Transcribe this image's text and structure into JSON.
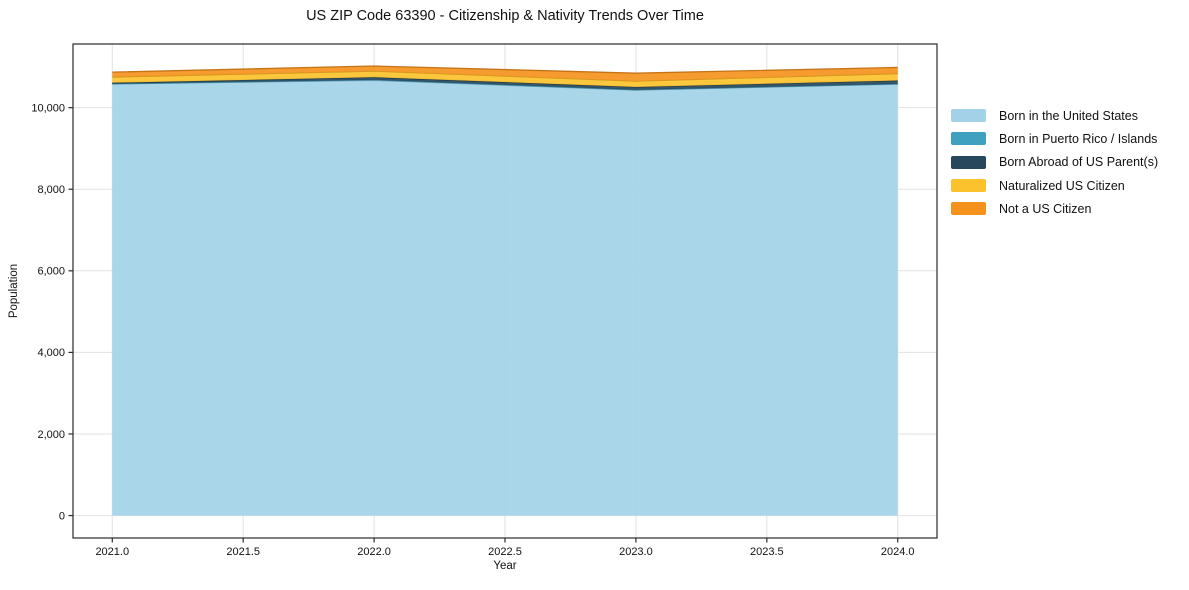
{
  "figure": {
    "background": "#ffffff",
    "text_color": "#111111",
    "spine_color": "#2a2a2a",
    "grid_color": "#e2e2e2"
  },
  "chart_data": {
    "type": "area",
    "stacked": true,
    "title": "US ZIP Code 63390 - Citizenship & Nativity Trends Over Time",
    "xlabel": "Year",
    "ylabel": "Population",
    "x": [
      2021,
      2022,
      2023,
      2024
    ],
    "series": [
      {
        "name": "Born in the United States",
        "color": "#A3D2E8",
        "values": [
          10580,
          10670,
          10430,
          10575
        ]
      },
      {
        "name": "Born in Puerto Rico / Islands",
        "color": "#3FA0C0",
        "values": [
          5,
          15,
          10,
          10
        ]
      },
      {
        "name": "Born Abroad of US Parent(s)",
        "color": "#27485C",
        "values": [
          25,
          60,
          65,
          80
        ]
      },
      {
        "name": "Naturalized US Citizen",
        "color": "#FCC22D",
        "values": [
          140,
          150,
          145,
          170
        ]
      },
      {
        "name": "Not a US Citizen",
        "color": "#F5921E",
        "values": [
          120,
          125,
          195,
          150
        ]
      }
    ],
    "totals": [
      10870,
      11020,
      10845,
      10985
    ],
    "xlim": [
      2020.85,
      2024.15
    ],
    "ylim": [
      -550,
      11560
    ],
    "xticks": {
      "values": [
        2021,
        2021.5,
        2022,
        2022.5,
        2023,
        2023.5,
        2024
      ],
      "labels": [
        "2021.0",
        "2021.5",
        "2022.0",
        "2022.5",
        "2023.0",
        "2023.5",
        "2024.0"
      ]
    },
    "yticks": {
      "values": [
        0,
        2000,
        4000,
        6000,
        8000,
        10000
      ],
      "labels": [
        "0",
        "2,000",
        "4,000",
        "6,000",
        "8,000",
        "10,000"
      ]
    },
    "grid": true,
    "legend_position": "right"
  }
}
